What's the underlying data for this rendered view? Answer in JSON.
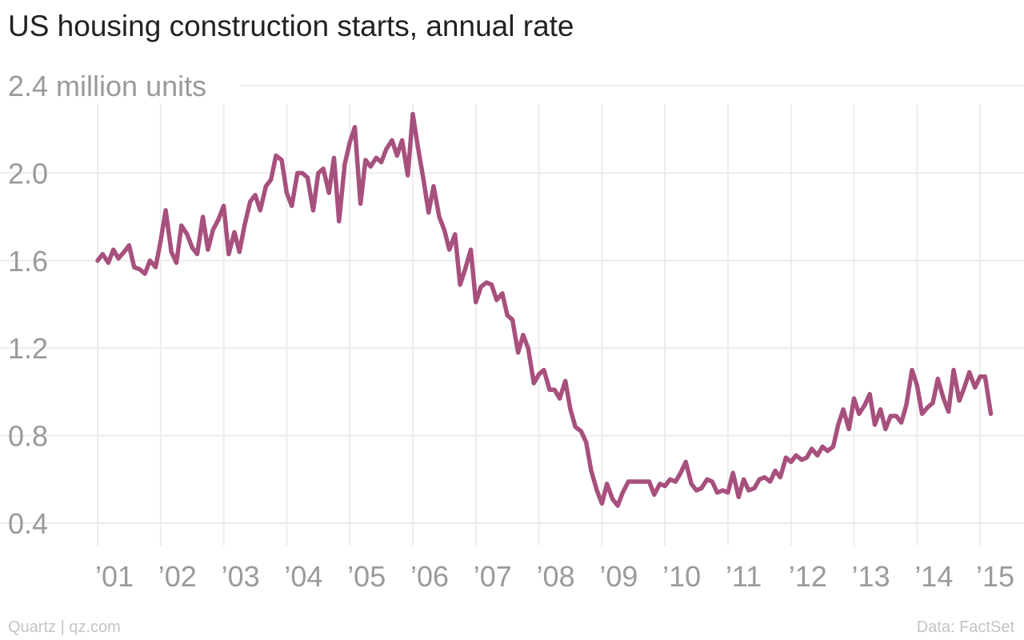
{
  "title": "US housing construction starts, annual rate",
  "footer": {
    "source": "Quartz | qz.com",
    "data": "Data: FactSet"
  },
  "colors": {
    "line": "#a7507e",
    "grid": "#ececec",
    "axis_text": "#9a9a9a"
  },
  "chart_data": {
    "type": "line",
    "title": "US housing construction starts, annual rate",
    "ylabel": "",
    "unit_label": "million units",
    "ylim": [
      0.4,
      2.4
    ],
    "yticks": [
      0.4,
      0.8,
      1.2,
      1.6,
      2.0,
      2.4
    ],
    "ytick_labels": [
      "0.4",
      "0.8",
      "1.2",
      "1.6",
      "2.0",
      "2.4 million units"
    ],
    "xlim": [
      2001.0,
      2015.1
    ],
    "xticks": [
      2001,
      2002,
      2003,
      2004,
      2005,
      2006,
      2007,
      2008,
      2009,
      2010,
      2011,
      2012,
      2013,
      2014,
      2015
    ],
    "xtick_labels": [
      "’01",
      "’02",
      "’03",
      "’04",
      "’05",
      "’06",
      "’07",
      "’08",
      "’09",
      "’10",
      "’11",
      "’12",
      "’13",
      "’14",
      "’15"
    ],
    "grid": true,
    "series": [
      {
        "color": "#a7507e",
        "points": [
          [
            2001.0,
            1.6
          ],
          [
            2001.08,
            1.63
          ],
          [
            2001.17,
            1.59
          ],
          [
            2001.25,
            1.65
          ],
          [
            2001.33,
            1.61
          ],
          [
            2001.42,
            1.64
          ],
          [
            2001.5,
            1.67
          ],
          [
            2001.58,
            1.57
          ],
          [
            2001.67,
            1.56
          ],
          [
            2001.75,
            1.54
          ],
          [
            2001.83,
            1.6
          ],
          [
            2001.92,
            1.57
          ],
          [
            2002.0,
            1.69
          ],
          [
            2002.08,
            1.83
          ],
          [
            2002.17,
            1.64
          ],
          [
            2002.25,
            1.59
          ],
          [
            2002.33,
            1.76
          ],
          [
            2002.42,
            1.72
          ],
          [
            2002.5,
            1.66
          ],
          [
            2002.58,
            1.63
          ],
          [
            2002.67,
            1.8
          ],
          [
            2002.75,
            1.65
          ],
          [
            2002.83,
            1.74
          ],
          [
            2002.92,
            1.79
          ],
          [
            2003.0,
            1.85
          ],
          [
            2003.08,
            1.63
          ],
          [
            2003.17,
            1.73
          ],
          [
            2003.25,
            1.64
          ],
          [
            2003.33,
            1.76
          ],
          [
            2003.42,
            1.87
          ],
          [
            2003.5,
            1.9
          ],
          [
            2003.58,
            1.83
          ],
          [
            2003.67,
            1.94
          ],
          [
            2003.75,
            1.97
          ],
          [
            2003.83,
            2.08
          ],
          [
            2003.92,
            2.06
          ],
          [
            2004.0,
            1.91
          ],
          [
            2004.08,
            1.85
          ],
          [
            2004.17,
            2.0
          ],
          [
            2004.25,
            2.0
          ],
          [
            2004.33,
            1.98
          ],
          [
            2004.42,
            1.83
          ],
          [
            2004.5,
            2.0
          ],
          [
            2004.58,
            2.02
          ],
          [
            2004.67,
            1.91
          ],
          [
            2004.75,
            2.07
          ],
          [
            2004.83,
            1.78
          ],
          [
            2004.92,
            2.04
          ],
          [
            2005.0,
            2.14
          ],
          [
            2005.08,
            2.21
          ],
          [
            2005.17,
            1.86
          ],
          [
            2005.25,
            2.06
          ],
          [
            2005.33,
            2.03
          ],
          [
            2005.42,
            2.07
          ],
          [
            2005.5,
            2.05
          ],
          [
            2005.58,
            2.11
          ],
          [
            2005.67,
            2.15
          ],
          [
            2005.75,
            2.08
          ],
          [
            2005.83,
            2.15
          ],
          [
            2005.92,
            1.99
          ],
          [
            2006.0,
            2.27
          ],
          [
            2006.08,
            2.12
          ],
          [
            2006.17,
            1.97
          ],
          [
            2006.25,
            1.82
          ],
          [
            2006.33,
            1.94
          ],
          [
            2006.42,
            1.8
          ],
          [
            2006.5,
            1.74
          ],
          [
            2006.58,
            1.65
          ],
          [
            2006.67,
            1.72
          ],
          [
            2006.75,
            1.49
          ],
          [
            2006.83,
            1.56
          ],
          [
            2006.92,
            1.65
          ],
          [
            2007.0,
            1.41
          ],
          [
            2007.08,
            1.48
          ],
          [
            2007.17,
            1.5
          ],
          [
            2007.25,
            1.49
          ],
          [
            2007.33,
            1.42
          ],
          [
            2007.42,
            1.45
          ],
          [
            2007.5,
            1.35
          ],
          [
            2007.58,
            1.33
          ],
          [
            2007.67,
            1.18
          ],
          [
            2007.75,
            1.26
          ],
          [
            2007.83,
            1.2
          ],
          [
            2007.92,
            1.04
          ],
          [
            2008.0,
            1.08
          ],
          [
            2008.08,
            1.1
          ],
          [
            2008.17,
            1.01
          ],
          [
            2008.25,
            1.01
          ],
          [
            2008.33,
            0.97
          ],
          [
            2008.42,
            1.05
          ],
          [
            2008.5,
            0.92
          ],
          [
            2008.58,
            0.84
          ],
          [
            2008.67,
            0.82
          ],
          [
            2008.75,
            0.77
          ],
          [
            2008.83,
            0.64
          ],
          [
            2008.92,
            0.55
          ],
          [
            2009.0,
            0.49
          ],
          [
            2009.08,
            0.58
          ],
          [
            2009.17,
            0.51
          ],
          [
            2009.25,
            0.48
          ],
          [
            2009.33,
            0.54
          ],
          [
            2009.42,
            0.59
          ],
          [
            2009.5,
            0.59
          ],
          [
            2009.58,
            0.59
          ],
          [
            2009.67,
            0.59
          ],
          [
            2009.75,
            0.59
          ],
          [
            2009.83,
            0.53
          ],
          [
            2009.92,
            0.58
          ],
          [
            2010.0,
            0.57
          ],
          [
            2010.08,
            0.6
          ],
          [
            2010.17,
            0.59
          ],
          [
            2010.25,
            0.63
          ],
          [
            2010.33,
            0.68
          ],
          [
            2010.42,
            0.58
          ],
          [
            2010.5,
            0.55
          ],
          [
            2010.58,
            0.56
          ],
          [
            2010.67,
            0.6
          ],
          [
            2010.75,
            0.59
          ],
          [
            2010.83,
            0.54
          ],
          [
            2010.92,
            0.55
          ],
          [
            2011.0,
            0.54
          ],
          [
            2011.08,
            0.63
          ],
          [
            2011.17,
            0.52
          ],
          [
            2011.25,
            0.6
          ],
          [
            2011.33,
            0.55
          ],
          [
            2011.42,
            0.56
          ],
          [
            2011.5,
            0.6
          ],
          [
            2011.58,
            0.61
          ],
          [
            2011.67,
            0.59
          ],
          [
            2011.75,
            0.64
          ],
          [
            2011.83,
            0.61
          ],
          [
            2011.92,
            0.7
          ],
          [
            2012.0,
            0.68
          ],
          [
            2012.08,
            0.71
          ],
          [
            2012.17,
            0.69
          ],
          [
            2012.25,
            0.7
          ],
          [
            2012.33,
            0.74
          ],
          [
            2012.42,
            0.71
          ],
          [
            2012.5,
            0.75
          ],
          [
            2012.58,
            0.73
          ],
          [
            2012.67,
            0.75
          ],
          [
            2012.75,
            0.85
          ],
          [
            2012.83,
            0.92
          ],
          [
            2012.92,
            0.83
          ],
          [
            2013.0,
            0.97
          ],
          [
            2013.08,
            0.9
          ],
          [
            2013.17,
            0.94
          ],
          [
            2013.25,
            0.99
          ],
          [
            2013.33,
            0.85
          ],
          [
            2013.42,
            0.92
          ],
          [
            2013.5,
            0.83
          ],
          [
            2013.58,
            0.89
          ],
          [
            2013.67,
            0.89
          ],
          [
            2013.75,
            0.86
          ],
          [
            2013.83,
            0.94
          ],
          [
            2013.92,
            1.1
          ],
          [
            2014.0,
            1.03
          ],
          [
            2014.08,
            0.9
          ],
          [
            2014.17,
            0.93
          ],
          [
            2014.25,
            0.95
          ],
          [
            2014.33,
            1.06
          ],
          [
            2014.42,
            0.97
          ],
          [
            2014.5,
            0.91
          ],
          [
            2014.58,
            1.1
          ],
          [
            2014.67,
            0.96
          ],
          [
            2014.75,
            1.02
          ],
          [
            2014.83,
            1.09
          ],
          [
            2014.92,
            1.02
          ],
          [
            2015.0,
            1.07
          ],
          [
            2015.08,
            1.07
          ],
          [
            2015.17,
            0.9
          ]
        ]
      }
    ]
  }
}
